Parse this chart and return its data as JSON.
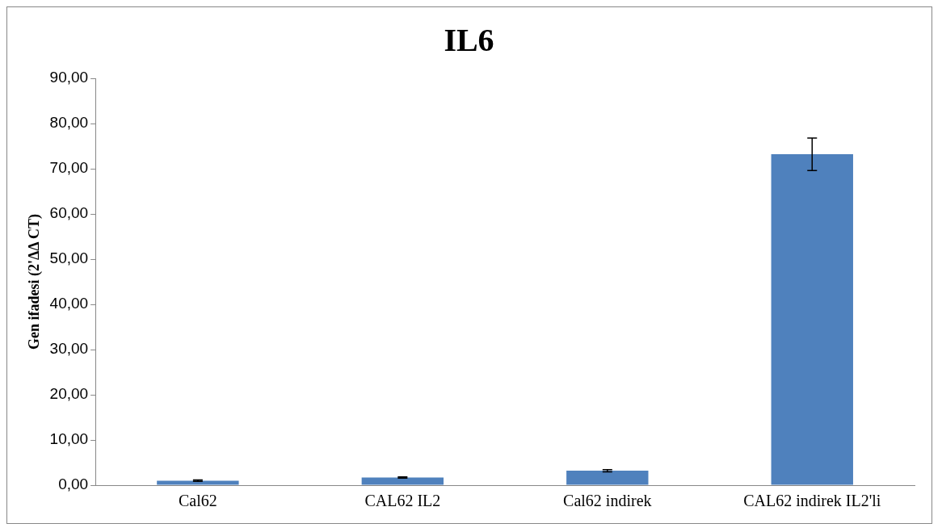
{
  "chart_data": {
    "type": "bar",
    "title": "IL6",
    "ylabel": "Gen ifadesi (2'ΔΔ CT)",
    "categories": [
      "Cal62",
      "CAL62 IL2",
      "Cal62 indirek",
      "CAL62 indirek IL2'li"
    ],
    "values": [
      1.0,
      1.7,
      3.2,
      73.2
    ],
    "errors": [
      0.15,
      0.15,
      0.25,
      3.6
    ],
    "color": "#4f81bd",
    "ylim": [
      0,
      90
    ],
    "yticks": [
      {
        "value": 0,
        "label": "0,00"
      },
      {
        "value": 10,
        "label": "10,00"
      },
      {
        "value": 20,
        "label": "20,00"
      },
      {
        "value": 30,
        "label": "30,00"
      },
      {
        "value": 40,
        "label": "40,00"
      },
      {
        "value": 50,
        "label": "50,00"
      },
      {
        "value": 60,
        "label": "60,00"
      },
      {
        "value": 70,
        "label": "70,00"
      },
      {
        "value": 80,
        "label": "80,00"
      },
      {
        "value": 90,
        "label": "90,00"
      }
    ],
    "grid": false,
    "legend": false
  }
}
